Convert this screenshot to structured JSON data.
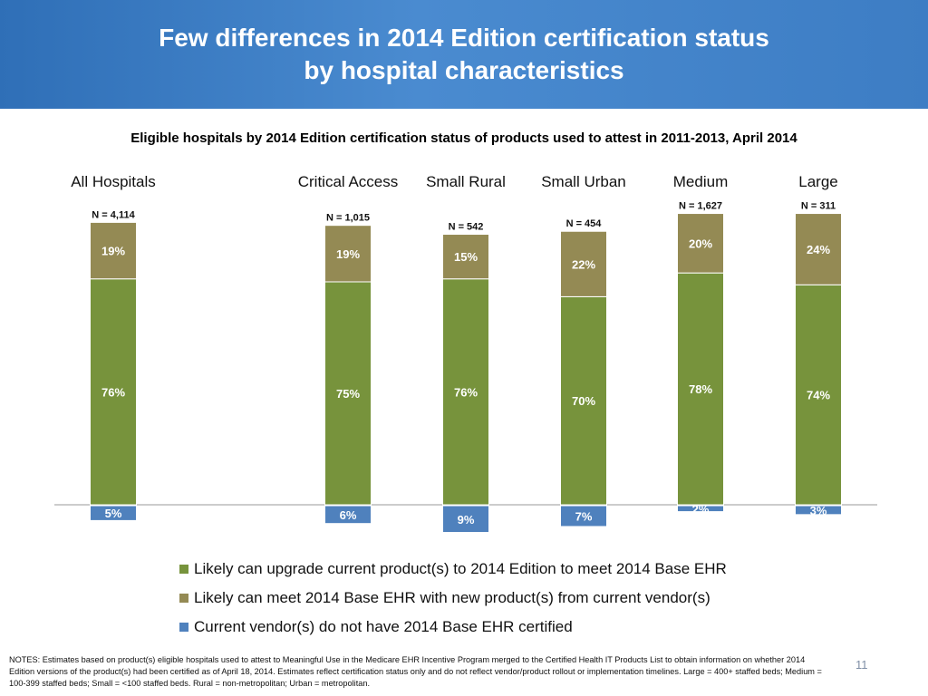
{
  "slide": {
    "title_line1": "Few differences in 2014 Edition certification status",
    "title_line2": "by hospital characteristics",
    "subtitle": "Eligible hospitals by 2014 Edition certification status of products used to attest in 2011-2013, April 2014",
    "notes": "NOTES: Estimates based on product(s) eligible hospitals used to attest to Meaningful Use in the Medicare EHR Incentive Program  merged to the Certified Health IT Products List to obtain information on whether 2014 Edition versions of the product(s) had been certified as of April 18, 2014. Estimates reflect certification status only and do not reflect vendor/product rollout or implementation timelines. Large = 400+ staffed beds; Medium = 100-399 staffed beds; Small = <100 staffed beds. Rural = non-metropolitan; Urban = metropolitan.",
    "page_number": "11"
  },
  "chart_data": {
    "type": "bar",
    "stacked": true,
    "categories": [
      "All Hospitals",
      "Critical Access",
      "Small Rural",
      "Small Urban",
      "Medium",
      "Large"
    ],
    "n_labels": [
      "N = 4,114",
      "N = 1,015",
      "N = 542",
      "N = 454",
      "N = 1,627",
      "N = 311"
    ],
    "series": [
      {
        "name": "Likely can upgrade current product(s) to 2014 Edition to meet 2014 Base EHR",
        "values": [
          76,
          75,
          76,
          70,
          78,
          74
        ],
        "color": "#77933c",
        "direction": "up"
      },
      {
        "name": "Likely can meet 2014 Base EHR with new product(s) from current vendor(s)",
        "values": [
          19,
          19,
          15,
          22,
          20,
          24
        ],
        "color": "#948a54",
        "direction": "up"
      },
      {
        "name": "Current vendor(s) do not have 2014 Base EHR certified",
        "values": [
          5,
          6,
          9,
          7,
          2,
          3
        ],
        "color": "#4f81bd",
        "direction": "down"
      }
    ],
    "legend_order": [
      0,
      1,
      2
    ],
    "legend_position": "bottom",
    "value_suffix": "%",
    "grid": false
  }
}
